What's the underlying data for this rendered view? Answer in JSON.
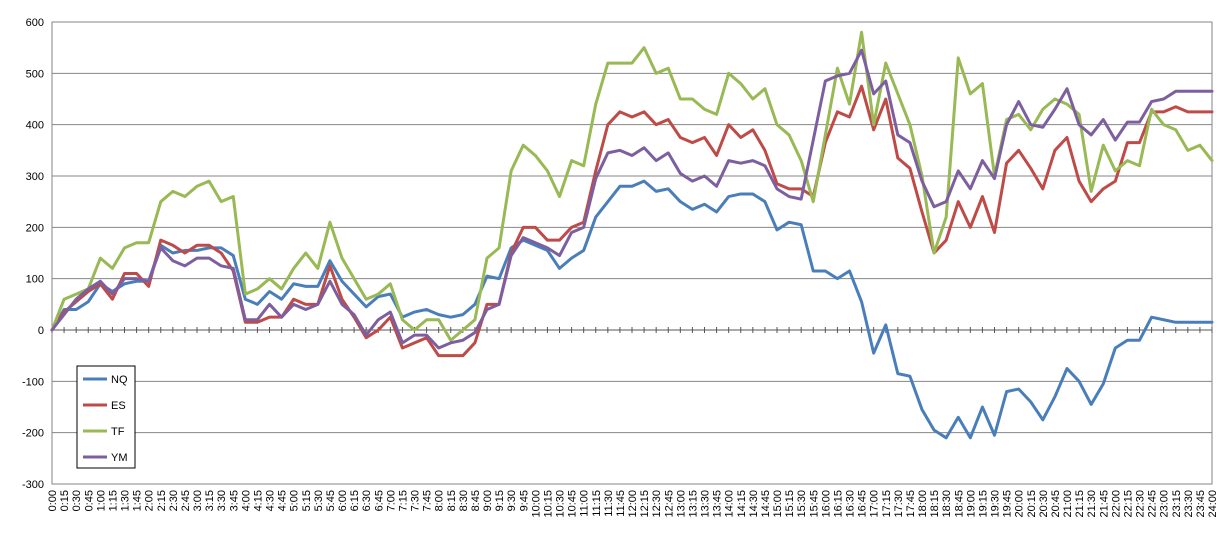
{
  "chart_data": {
    "type": "line",
    "title": "",
    "xlabel": "",
    "ylabel": "",
    "ylim": [
      -300,
      600
    ],
    "yticks": [
      600,
      500,
      400,
      300,
      200,
      100,
      0,
      -100,
      -200,
      -300
    ],
    "grid": true,
    "legend_placement": "lower-left",
    "categories": [
      "0:00",
      "0:15",
      "0:30",
      "0:45",
      "1:00",
      "1:15",
      "1:30",
      "1:45",
      "2:00",
      "2:15",
      "2:30",
      "2:45",
      "3:00",
      "3:15",
      "3:30",
      "3:45",
      "4:00",
      "4:15",
      "4:30",
      "4:45",
      "5:00",
      "5:15",
      "5:30",
      "5:45",
      "6:00",
      "6:15",
      "6:30",
      "6:45",
      "7:00",
      "7:15",
      "7:30",
      "7:45",
      "8:00",
      "8:15",
      "8:30",
      "8:45",
      "9:00",
      "9:15",
      "9:30",
      "9:45",
      "10:00",
      "10:15",
      "10:30",
      "10:45",
      "11:00",
      "11:15",
      "11:30",
      "11:45",
      "12:00",
      "12:15",
      "12:30",
      "12:45",
      "13:00",
      "13:15",
      "13:30",
      "13:45",
      "14:00",
      "14:15",
      "14:30",
      "14:45",
      "15:00",
      "15:15",
      "15:30",
      "15:45",
      "16:00",
      "16:15",
      "16:30",
      "16:45",
      "17:00",
      "17:15",
      "17:30",
      "17:45",
      "18:00",
      "18:15",
      "18:30",
      "18:45",
      "19:00",
      "19:15",
      "19:30",
      "19:45",
      "20:00",
      "20:15",
      "20:30",
      "20:45",
      "21:00",
      "21:15",
      "21:30",
      "21:45",
      "22:00",
      "22:15",
      "22:30",
      "22:45",
      "23:00",
      "23:15",
      "23:30",
      "23:45",
      "24:00"
    ],
    "series": [
      {
        "name": "NQ",
        "color": "#4a7ebb",
        "values": [
          0,
          40,
          40,
          55,
          90,
          75,
          90,
          95,
          95,
          165,
          150,
          155,
          155,
          160,
          160,
          145,
          60,
          50,
          75,
          60,
          90,
          85,
          85,
          135,
          95,
          70,
          45,
          65,
          70,
          25,
          35,
          40,
          30,
          25,
          30,
          50,
          105,
          100,
          160,
          175,
          165,
          155,
          120,
          140,
          155,
          220,
          250,
          280,
          280,
          290,
          270,
          275,
          250,
          235,
          245,
          230,
          260,
          265,
          265,
          250,
          195,
          210,
          205,
          115,
          115,
          100,
          115,
          55,
          -45,
          10,
          -85,
          -90,
          -155,
          -195,
          -210,
          -170,
          -210,
          -150,
          -205,
          -120,
          -115,
          -140,
          -175,
          -130,
          -75,
          -100,
          -145,
          -105,
          -35,
          -20,
          -20,
          25,
          20,
          15,
          15,
          15,
          15
        ]
      },
      {
        "name": "ES",
        "color": "#be4b48",
        "values": [
          0,
          35,
          55,
          75,
          90,
          60,
          110,
          110,
          85,
          175,
          165,
          150,
          165,
          165,
          150,
          115,
          15,
          15,
          25,
          25,
          60,
          50,
          50,
          125,
          60,
          25,
          -15,
          0,
          25,
          -35,
          -25,
          -15,
          -50,
          -50,
          -50,
          -25,
          50,
          50,
          150,
          200,
          200,
          175,
          175,
          200,
          210,
          310,
          400,
          425,
          415,
          425,
          400,
          410,
          375,
          365,
          375,
          340,
          400,
          375,
          390,
          350,
          285,
          275,
          275,
          260,
          365,
          425,
          415,
          475,
          390,
          450,
          335,
          315,
          230,
          150,
          175,
          250,
          200,
          260,
          190,
          325,
          350,
          315,
          275,
          350,
          375,
          290,
          250,
          275,
          290,
          365,
          365,
          425,
          425,
          435,
          425,
          425,
          425
        ]
      },
      {
        "name": "TF",
        "color": "#98b954",
        "values": [
          0,
          60,
          70,
          80,
          140,
          120,
          160,
          170,
          170,
          250,
          270,
          260,
          280,
          290,
          250,
          260,
          70,
          80,
          100,
          80,
          120,
          150,
          120,
          210,
          140,
          100,
          60,
          70,
          90,
          20,
          0,
          20,
          20,
          -20,
          0,
          20,
          140,
          160,
          310,
          360,
          340,
          310,
          260,
          330,
          320,
          440,
          520,
          520,
          520,
          550,
          500,
          510,
          450,
          450,
          430,
          420,
          500,
          480,
          450,
          470,
          400,
          380,
          330,
          250,
          380,
          510,
          440,
          580,
          400,
          520,
          460,
          400,
          300,
          150,
          220,
          530,
          460,
          480,
          300,
          410,
          420,
          390,
          430,
          450,
          440,
          420,
          270,
          360,
          310,
          330,
          320,
          430,
          400,
          390,
          350,
          360,
          330
        ]
      },
      {
        "name": "YM",
        "color": "#7d5fa0",
        "values": [
          0,
          30,
          60,
          80,
          95,
          70,
          100,
          100,
          95,
          160,
          135,
          125,
          140,
          140,
          125,
          120,
          20,
          20,
          50,
          25,
          50,
          40,
          50,
          95,
          50,
          30,
          -10,
          20,
          35,
          -25,
          -10,
          -10,
          -35,
          -25,
          -20,
          -5,
          40,
          50,
          145,
          180,
          170,
          160,
          145,
          190,
          200,
          295,
          345,
          350,
          340,
          355,
          330,
          345,
          305,
          290,
          300,
          280,
          330,
          325,
          330,
          320,
          275,
          260,
          255,
          370,
          485,
          495,
          500,
          545,
          460,
          485,
          380,
          365,
          290,
          240,
          250,
          310,
          275,
          330,
          295,
          400,
          445,
          400,
          395,
          430,
          470,
          400,
          380,
          410,
          370,
          405,
          405,
          445,
          450,
          465,
          465,
          465,
          465
        ]
      }
    ]
  }
}
